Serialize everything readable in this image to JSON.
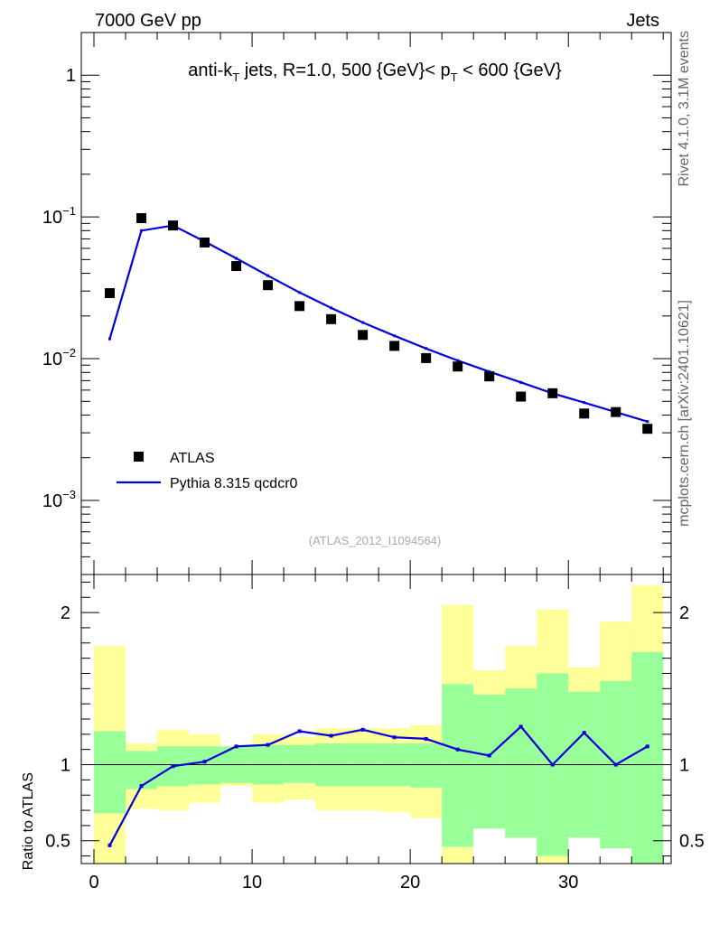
{
  "header": {
    "left_label": "7000 GeV pp",
    "right_label": "Jets",
    "side_label_top": "Rivet 4.1.0,  3.1M events",
    "side_label_bottom": "mcplots.cern.ch [arXiv:2401.10621]"
  },
  "chart_data": [
    {
      "type": "scatter",
      "title_parts": {
        "main": "anti-k",
        "main_sub": "T",
        "mid": " jets, R=1.0, 500 {GeV}< p",
        "mid_sub": "T",
        "tail": " < 600 {GeV}"
      },
      "analysis_id": "(ATLAS_2012_I1094564)",
      "y_scale": "log",
      "ylim": [
        0.0003,
        2
      ],
      "xlim": [
        -0.8,
        36.5
      ],
      "y_tick_labels": [
        {
          "v": 1,
          "base": "1",
          "exp": ""
        },
        {
          "v": 0.1,
          "base": "10",
          "exp": "−1"
        },
        {
          "v": 0.01,
          "base": "10",
          "exp": "−2"
        },
        {
          "v": 0.001,
          "base": "10",
          "exp": "−3"
        }
      ],
      "legend": [
        {
          "name": "ATLAS",
          "marker": "square",
          "color": "#000000"
        },
        {
          "name": "Pythia 8.315 qcdcr0",
          "marker": "line",
          "color": "#0000dd"
        }
      ],
      "series": [
        {
          "name": "ATLAS",
          "color": "#000000",
          "x": [
            1,
            3,
            5,
            7,
            9,
            11,
            13,
            15,
            17,
            19,
            21,
            23,
            25,
            27,
            29,
            31,
            33,
            35
          ],
          "y": [
            0.029,
            0.098,
            0.087,
            0.066,
            0.045,
            0.033,
            0.0235,
            0.019,
            0.0147,
            0.0123,
            0.0101,
            0.0088,
            0.0075,
            0.0054,
            0.0057,
            0.0041,
            0.0042,
            0.0032
          ]
        },
        {
          "name": "Pythia 8.315 qcdcr0",
          "color": "#0000dd",
          "x": [
            1,
            3,
            5,
            7,
            9,
            11,
            13,
            15,
            17,
            19,
            21,
            23,
            25,
            27,
            29,
            31,
            33,
            35
          ],
          "y": [
            0.0138,
            0.08,
            0.087,
            0.067,
            0.051,
            0.0385,
            0.0293,
            0.0228,
            0.018,
            0.0145,
            0.0118,
            0.0097,
            0.0081,
            0.0068,
            0.0057,
            0.0049,
            0.0042,
            0.0036
          ]
        }
      ]
    },
    {
      "type": "line",
      "ylabel": "Ratio to ATLAS",
      "ylim": [
        0.35,
        2.25
      ],
      "xlim": [
        -0.8,
        36.5
      ],
      "x_ticks": [
        0,
        10,
        20,
        30
      ],
      "y_ticks": [
        0.5,
        1,
        2
      ],
      "bands": {
        "edges": [
          0,
          2,
          4,
          6,
          8,
          10,
          12,
          14,
          16,
          18,
          20,
          22,
          24,
          26,
          28,
          30,
          32,
          34,
          36
        ],
        "green_low": [
          0.68,
          0.84,
          0.86,
          0.87,
          0.88,
          0.87,
          0.88,
          0.86,
          0.86,
          0.86,
          0.85,
          0.46,
          0.58,
          0.52,
          0.4,
          0.52,
          0.45,
          0.35
        ],
        "green_high": [
          1.22,
          1.09,
          1.12,
          1.12,
          1.12,
          1.13,
          1.13,
          1.14,
          1.14,
          1.14,
          1.14,
          1.53,
          1.46,
          1.5,
          1.6,
          1.48,
          1.55,
          1.74
        ],
        "yellow_low": [
          0.35,
          0.71,
          0.7,
          0.75,
          0.86,
          0.75,
          0.77,
          0.7,
          0.7,
          0.69,
          0.65,
          0.35,
          0.77,
          0.68,
          0.35,
          0.82,
          0.53,
          0.35
        ],
        "yellow_high": [
          1.78,
          1.14,
          1.23,
          1.2,
          1.12,
          1.2,
          1.18,
          1.24,
          1.24,
          1.24,
          1.26,
          2.05,
          1.62,
          1.78,
          2.02,
          1.64,
          1.94,
          2.18
        ],
        "green_color": "#99ff99",
        "yellow_color": "#ffff99"
      },
      "series": [
        {
          "name": "Pythia 8.315 qcdcr0 / ATLAS",
          "color": "#0000dd",
          "x": [
            1,
            3,
            5,
            7,
            9,
            11,
            13,
            15,
            17,
            19,
            21,
            23,
            25,
            27,
            29,
            31,
            33,
            35
          ],
          "y": [
            0.47,
            0.86,
            0.99,
            1.02,
            1.12,
            1.13,
            1.22,
            1.19,
            1.23,
            1.18,
            1.17,
            1.1,
            1.06,
            1.25,
            1.0,
            1.21,
            1.0,
            1.12
          ]
        }
      ]
    }
  ]
}
